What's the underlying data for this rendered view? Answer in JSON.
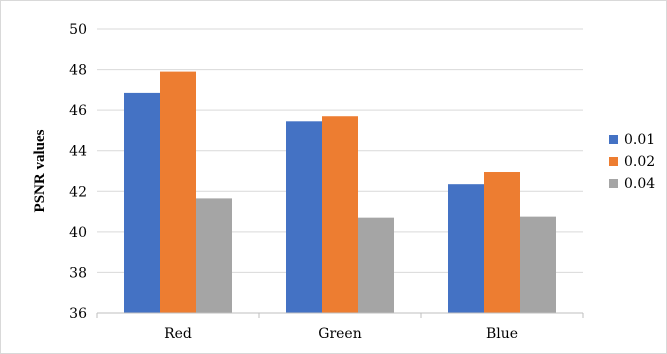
{
  "chart_data": {
    "type": "bar",
    "title": "",
    "xlabel": "",
    "ylabel": "PSNR values",
    "categories": [
      "Red",
      "Green",
      "Blue"
    ],
    "ylim": [
      36,
      50
    ],
    "yticks": [
      36,
      38,
      40,
      42,
      44,
      46,
      48,
      50
    ],
    "grid": true,
    "legend_position": "right",
    "series": [
      {
        "name": "0.01",
        "color": "#4472C4",
        "values": [
          46.85,
          45.45,
          42.35
        ]
      },
      {
        "name": "0.02",
        "color": "#ED7D31",
        "values": [
          47.9,
          45.7,
          42.95
        ]
      },
      {
        "name": "0.04",
        "color": "#A5A5A5",
        "values": [
          41.65,
          40.7,
          40.75
        ]
      }
    ]
  }
}
